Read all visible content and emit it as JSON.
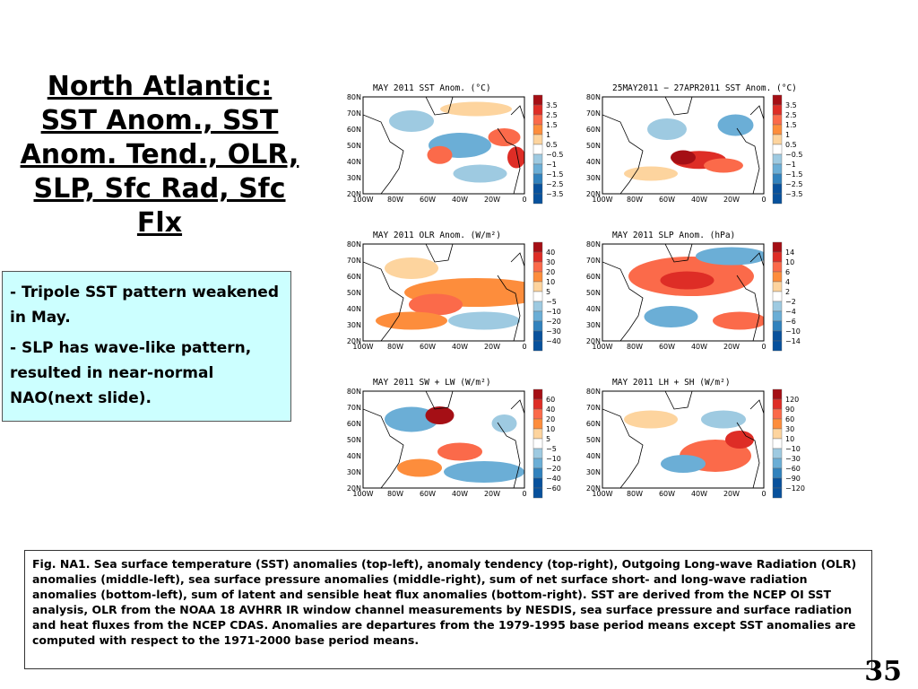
{
  "title": "North Atlantic: SST Anom., SST Anom. Tend., OLR, SLP, Sfc Rad, Sfc Flx",
  "bullets": [
    "Tripole SST pattern weakened in May.",
    "SLP has wave-like pattern, resulted in near-normal NAO(next slide)."
  ],
  "bullet_marker": "-",
  "maps": {
    "lat_labels": [
      "80N",
      "70N",
      "60N",
      "50N",
      "40N",
      "30N",
      "20N"
    ],
    "lon_labels": [
      "100W",
      "80W",
      "60W",
      "40W",
      "20W",
      "0"
    ],
    "panels": [
      {
        "title": "MAY 2011 SST Anom. (°C)",
        "legend": [
          "3.5",
          "2.5",
          "1.5",
          "1",
          "0.5",
          "−0.5",
          "−1",
          "−1.5",
          "−2.5",
          "−3.5"
        ]
      },
      {
        "title": "25MAY2011 − 27APR2011 SST Anom. (°C)",
        "legend": [
          "3.5",
          "2.5",
          "1.5",
          "1",
          "0.5",
          "−0.5",
          "−1",
          "−1.5",
          "−2.5",
          "−3.5"
        ]
      },
      {
        "title": "MAY 2011 OLR Anom. (W/m²)",
        "legend": [
          "40",
          "30",
          "20",
          "10",
          "5",
          "−5",
          "−10",
          "−20",
          "−30",
          "−40"
        ]
      },
      {
        "title": "MAY 2011 SLP Anom. (hPa)",
        "legend": [
          "14",
          "10",
          "6",
          "4",
          "2",
          "−2",
          "−4",
          "−6",
          "−10",
          "−14"
        ]
      },
      {
        "title": "MAY 2011 SW + LW (W/m²)",
        "legend": [
          "60",
          "40",
          "20",
          "10",
          "5",
          "−5",
          "−10",
          "−20",
          "−40",
          "−60"
        ]
      },
      {
        "title": "MAY 2011 LH + SH (W/m²)",
        "legend": [
          "120",
          "90",
          "60",
          "30",
          "10",
          "−10",
          "−30",
          "−60",
          "−90",
          "−120"
        ]
      }
    ],
    "colors": [
      "#a50f15",
      "#de2d26",
      "#fb6a4a",
      "#fd8d3c",
      "#fdd49e",
      "#ffffff",
      "#c6dbef",
      "#9ecae1",
      "#6baed6",
      "#3182bd",
      "#08519c"
    ]
  },
  "caption": "Fig. NA1. Sea surface temperature (SST) anomalies (top-left), anomaly tendency (top-right), Outgoing Long-wave Radiation (OLR) anomalies (middle-left), sea surface pressure anomalies (middle-right), sum of net surface short- and long-wave radiation anomalies (bottom-left), sum of latent and sensible heat flux anomalies (bottom-right). SST are derived from the NCEP OI SST analysis, OLR from the NOAA 18 AVHRR IR window channel measurements by NESDIS, sea surface pressure and surface radiation and heat fluxes from the NCEP CDAS. Anomalies are departures from the 1979-1995 base period means except SST anomalies are computed with respect to the 1971-2000 base period means.",
  "page_number": "35"
}
